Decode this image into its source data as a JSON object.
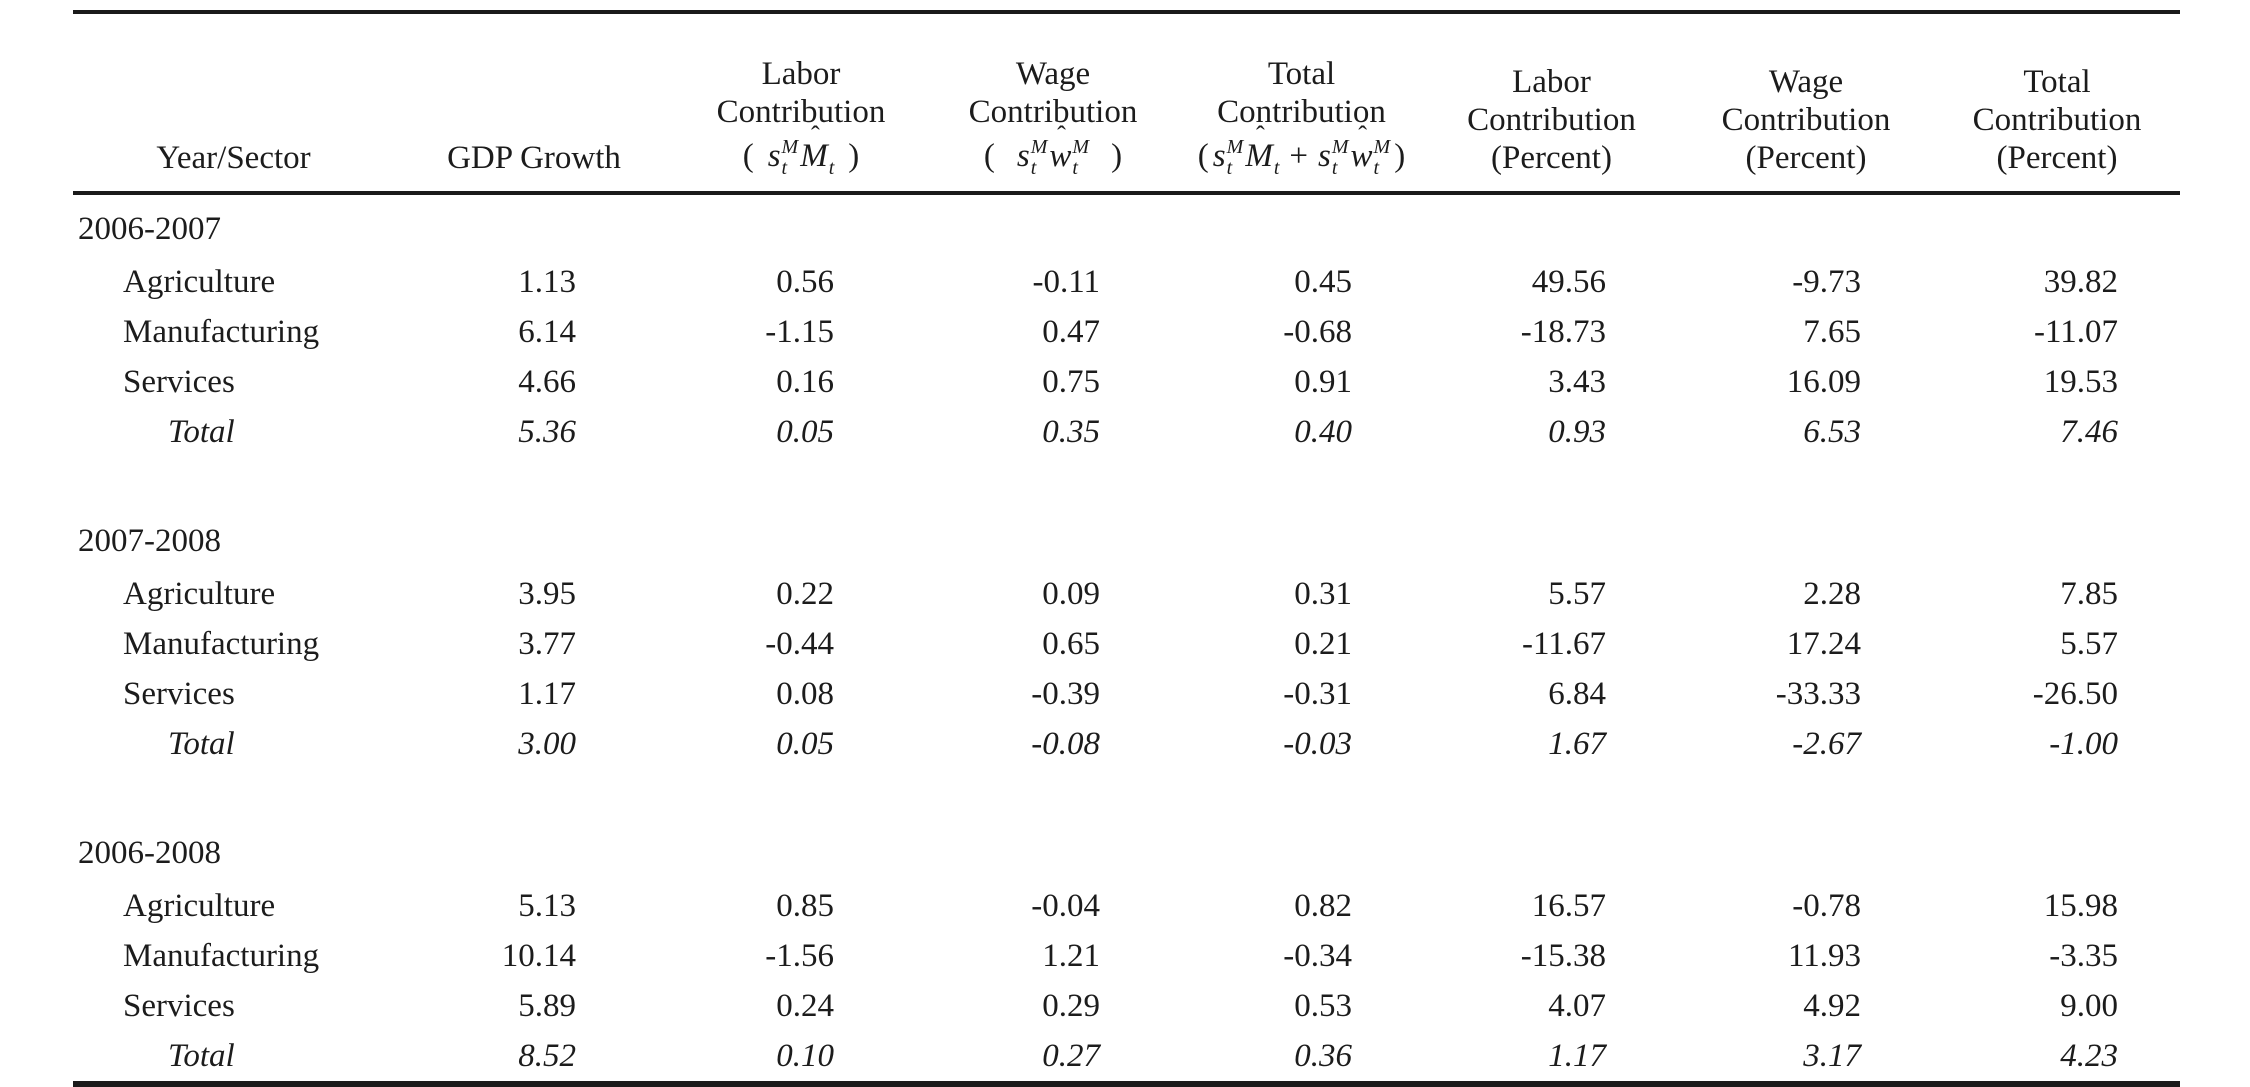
{
  "page": {
    "background": "#ffffff",
    "text_color": "#1c1c1c",
    "rule_color": "#1a1a1a"
  },
  "table": {
    "hat_glyph": "ˆ",
    "columns": [
      {
        "id": "year_sector",
        "header_lines": [
          "Year/Sector"
        ]
      },
      {
        "id": "gdp_growth",
        "header_lines": [
          "GDP Growth"
        ]
      },
      {
        "id": "labor_contribution",
        "header_lines": [
          "Labor",
          "Contribution"
        ],
        "math": {
          "open": "(",
          "close": ")",
          "tokens": [
            {
              "base": "s",
              "sup": "M",
              "sub": "t"
            },
            {
              "base": "M",
              "hat": true,
              "sub": "t"
            }
          ]
        }
      },
      {
        "id": "wage_contribution",
        "header_lines": [
          "Wage",
          "Contribution"
        ],
        "math": {
          "open": "(",
          "close": ")",
          "tokens": [
            {
              "base": "s",
              "sup": "M",
              "sub": "t"
            },
            {
              "base": "w",
              "hat": true,
              "sup": "M",
              "sub": "t"
            }
          ]
        }
      },
      {
        "id": "total_contribution",
        "header_lines": [
          "Total",
          "Contribution"
        ],
        "math": {
          "open": "(",
          "close": ")",
          "tokens": [
            {
              "base": "s",
              "sup": "M",
              "sub": "t"
            },
            {
              "base": "M",
              "hat": true,
              "sub": "t"
            },
            {
              "base": "+",
              "op": true
            },
            {
              "base": "s",
              "sup": "M",
              "sub": "t"
            },
            {
              "base": "w",
              "hat": true,
              "sup": "M",
              "sub": "t"
            }
          ]
        }
      },
      {
        "id": "labor_contribution_percent",
        "header_lines": [
          "Labor",
          "Contribution",
          "(Percent)"
        ]
      },
      {
        "id": "wage_contribution_percent",
        "header_lines": [
          "Wage",
          "Contribution",
          "(Percent)"
        ]
      },
      {
        "id": "total_contribution_percent",
        "header_lines": [
          "Total",
          "Contribution",
          "(Percent)"
        ]
      }
    ],
    "groups": [
      {
        "label": "2006-2007",
        "rows": [
          {
            "sector": "Agriculture",
            "italic": false,
            "values": [
              "1.13",
              "0.56",
              "-0.11",
              "0.45",
              "49.56",
              "-9.73",
              "39.82"
            ]
          },
          {
            "sector": "Manufacturing",
            "italic": false,
            "values": [
              "6.14",
              "-1.15",
              "0.47",
              "-0.68",
              "-18.73",
              "7.65",
              "-11.07"
            ]
          },
          {
            "sector": "Services",
            "italic": false,
            "values": [
              "4.66",
              "0.16",
              "0.75",
              "0.91",
              "3.43",
              "16.09",
              "19.53"
            ]
          },
          {
            "sector": "Total",
            "italic": true,
            "values": [
              "5.36",
              "0.05",
              "0.35",
              "0.40",
              "0.93",
              "6.53",
              "7.46"
            ]
          }
        ]
      },
      {
        "label": "2007-2008",
        "rows": [
          {
            "sector": "Agriculture",
            "italic": false,
            "values": [
              "3.95",
              "0.22",
              "0.09",
              "0.31",
              "5.57",
              "2.28",
              "7.85"
            ]
          },
          {
            "sector": "Manufacturing",
            "italic": false,
            "values": [
              "3.77",
              "-0.44",
              "0.65",
              "0.21",
              "-11.67",
              "17.24",
              "5.57"
            ]
          },
          {
            "sector": "Services",
            "italic": false,
            "values": [
              "1.17",
              "0.08",
              "-0.39",
              "-0.31",
              "6.84",
              "-33.33",
              "-26.50"
            ]
          },
          {
            "sector": "Total",
            "italic": true,
            "values": [
              "3.00",
              "0.05",
              "-0.08",
              "-0.03",
              "1.67",
              "-2.67",
              "-1.00"
            ]
          }
        ]
      },
      {
        "label": "2006-2008",
        "rows": [
          {
            "sector": "Agriculture",
            "italic": false,
            "values": [
              "5.13",
              "0.85",
              "-0.04",
              "0.82",
              "16.57",
              "-0.78",
              "15.98"
            ]
          },
          {
            "sector": "Manufacturing",
            "italic": false,
            "values": [
              "10.14",
              "-1.56",
              "1.21",
              "-0.34",
              "-15.38",
              "11.93",
              "-3.35"
            ]
          },
          {
            "sector": "Services",
            "italic": false,
            "values": [
              "5.89",
              "0.24",
              "0.29",
              "0.53",
              "4.07",
              "4.92",
              "9.00"
            ]
          },
          {
            "sector": "Total",
            "italic": true,
            "values": [
              "8.52",
              "0.10",
              "0.27",
              "0.36",
              "1.17",
              "3.17",
              "4.23"
            ]
          }
        ]
      }
    ]
  },
  "chart_data": {
    "type": "table",
    "title": "",
    "row_groups": [
      "2006-2007",
      "2007-2008",
      "2006-2008"
    ],
    "row_labels": [
      "Agriculture",
      "Manufacturing",
      "Services",
      "Total"
    ],
    "column_labels": [
      "GDP Growth",
      "Labor Contribution",
      "Wage Contribution",
      "Total Contribution",
      "Labor Contribution (Percent)",
      "Wage Contribution (Percent)",
      "Total Contribution (Percent)"
    ]
  }
}
